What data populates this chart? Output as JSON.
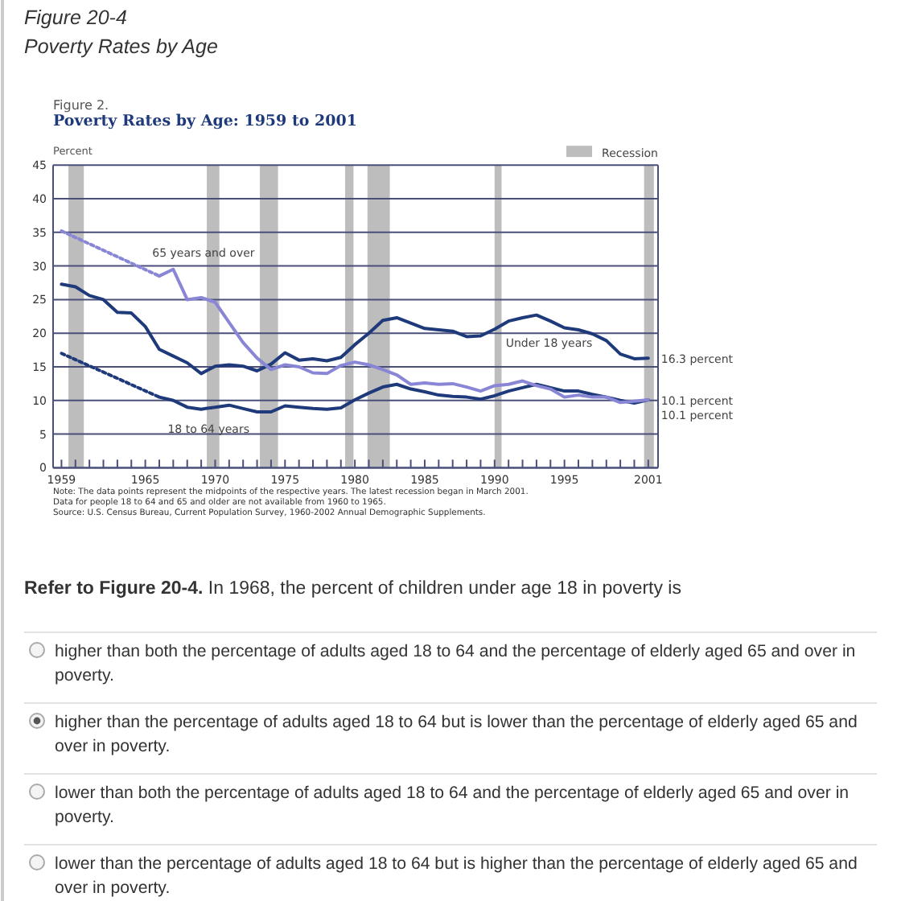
{
  "chart_data": {
    "type": "line",
    "title": "Poverty Rates by Age: 1959 to 2001",
    "subtitle": "Figure 2.",
    "ylabel": "Percent",
    "x": [
      1959,
      1960,
      1961,
      1962,
      1963,
      1964,
      1965,
      1966,
      1967,
      1968,
      1969,
      1970,
      1971,
      1972,
      1973,
      1974,
      1975,
      1976,
      1977,
      1978,
      1979,
      1980,
      1981,
      1982,
      1983,
      1984,
      1985,
      1986,
      1987,
      1988,
      1989,
      1990,
      1991,
      1992,
      1993,
      1994,
      1995,
      1996,
      1997,
      1998,
      1999,
      2000,
      2001
    ],
    "series": [
      {
        "name": "Under 18 years",
        "color": "#1f3a7a",
        "values": [
          27.3,
          26.9,
          25.6,
          25.0,
          23.1,
          23.0,
          21.0,
          17.6,
          16.6,
          15.6,
          14.0,
          15.1,
          15.3,
          15.1,
          14.4,
          15.4,
          17.1,
          16.0,
          16.2,
          15.9,
          16.4,
          18.3,
          20.0,
          21.9,
          22.3,
          21.5,
          20.7,
          20.5,
          20.3,
          19.5,
          19.6,
          20.6,
          21.8,
          22.3,
          22.7,
          21.8,
          20.8,
          20.5,
          19.9,
          18.9,
          16.9,
          16.2,
          16.3
        ],
        "value_labels": [
          null,
          null,
          null,
          null,
          null,
          null,
          null,
          null,
          null,
          null,
          null,
          null,
          null,
          null,
          null,
          null,
          null,
          null,
          null,
          null,
          null,
          null,
          null,
          null,
          null,
          null,
          null,
          null,
          null,
          null,
          null,
          null,
          null,
          null,
          null,
          null,
          null,
          null,
          null,
          null,
          null,
          null,
          "16.3 percent"
        ]
      },
      {
        "name": "18 to 64 years",
        "color": "#1f3a7a",
        "x": [
          1966,
          1967,
          1968,
          1969,
          1970,
          1971,
          1972,
          1973,
          1974,
          1975,
          1976,
          1977,
          1978,
          1979,
          1980,
          1981,
          1982,
          1983,
          1984,
          1985,
          1986,
          1987,
          1988,
          1989,
          1990,
          1991,
          1992,
          1993,
          1994,
          1995,
          1996,
          1997,
          1998,
          1999,
          2000,
          2001
        ],
        "values": [
          10.5,
          10.0,
          9.0,
          8.7,
          9.0,
          9.3,
          8.8,
          8.3,
          8.3,
          9.2,
          9.0,
          8.8,
          8.7,
          8.9,
          10.1,
          11.1,
          12.0,
          12.4,
          11.7,
          11.3,
          10.8,
          10.6,
          10.5,
          10.2,
          10.7,
          11.4,
          11.9,
          12.4,
          11.9,
          11.4,
          11.4,
          10.9,
          10.5,
          10.0,
          9.6,
          10.1
        ],
        "value_labels": [
          null,
          null,
          null,
          null,
          null,
          null,
          null,
          null,
          null,
          null,
          null,
          null,
          null,
          null,
          null,
          null,
          null,
          null,
          null,
          null,
          null,
          null,
          null,
          null,
          null,
          null,
          null,
          null,
          null,
          null,
          null,
          null,
          null,
          null,
          null,
          "10.1 percent"
        ]
      },
      {
        "color": "#1f3a7a",
        "line_style": "dotted",
        "x": [
          1959,
          1966
        ],
        "values": [
          17.0,
          10.5
        ]
      },
      {
        "name": "65 years and over",
        "color": "#8a86d6",
        "x": [
          1966,
          1967,
          1968,
          1969,
          1970,
          1971,
          1972,
          1973,
          1974,
          1975,
          1976,
          1977,
          1978,
          1979,
          1980,
          1981,
          1982,
          1983,
          1984,
          1985,
          1986,
          1987,
          1988,
          1989,
          1990,
          1991,
          1992,
          1993,
          1994,
          1995,
          1996,
          1997,
          1998,
          1999,
          2000,
          2001
        ],
        "values": [
          28.5,
          29.5,
          25.0,
          25.3,
          24.6,
          21.6,
          18.6,
          16.3,
          14.6,
          15.3,
          15.0,
          14.1,
          14.0,
          15.2,
          15.7,
          15.3,
          14.6,
          13.8,
          12.4,
          12.6,
          12.4,
          12.5,
          12.0,
          11.4,
          12.2,
          12.4,
          12.9,
          12.2,
          11.7,
          10.5,
          10.8,
          10.5,
          10.5,
          9.7,
          9.9,
          10.1
        ],
        "value_labels": [
          null,
          null,
          null,
          null,
          null,
          null,
          null,
          null,
          null,
          null,
          null,
          null,
          null,
          null,
          null,
          null,
          null,
          null,
          null,
          null,
          null,
          null,
          null,
          null,
          null,
          null,
          null,
          null,
          null,
          null,
          null,
          null,
          null,
          null,
          null,
          "10.1 percent"
        ]
      },
      {
        "color": "#8a86d6",
        "line_style": "dotted",
        "x": [
          1959,
          1966
        ],
        "values": [
          35.2,
          28.5
        ]
      }
    ],
    "xlim": [
      1958.4,
      2001.7
    ],
    "xticks": [
      1959,
      {
        "value": 1960,
        "label": null
      },
      {
        "value": 1961,
        "label": null
      },
      {
        "value": 1962,
        "label": null
      },
      {
        "value": 1963,
        "label": null
      },
      {
        "value": 1964,
        "label": null
      },
      1965,
      {
        "value": 1966,
        "label": null
      },
      {
        "value": 1967,
        "label": null
      },
      {
        "value": 1968,
        "label": null
      },
      {
        "value": 1969,
        "label": null
      },
      1970,
      {
        "value": 1971,
        "label": null
      },
      {
        "value": 1972,
        "label": null
      },
      {
        "value": 1973,
        "label": null
      },
      {
        "value": 1974,
        "label": null
      },
      1975,
      {
        "value": 1976,
        "label": null
      },
      {
        "value": 1977,
        "label": null
      },
      {
        "value": 1978,
        "label": null
      },
      {
        "value": 1979,
        "label": null
      },
      1980,
      {
        "value": 1981,
        "label": null
      },
      {
        "value": 1982,
        "label": null
      },
      {
        "value": 1983,
        "label": null
      },
      {
        "value": 1984,
        "label": null
      },
      1985,
      {
        "value": 1986,
        "label": null
      },
      {
        "value": 1987,
        "label": null
      },
      {
        "value": 1988,
        "label": null
      },
      {
        "value": 1989,
        "label": null
      },
      1990,
      {
        "value": 1991,
        "label": null
      },
      {
        "value": 1992,
        "label": null
      },
      {
        "value": 1993,
        "label": null
      },
      {
        "value": 1994,
        "label": null
      },
      1995,
      {
        "value": 1996,
        "label": null
      },
      {
        "value": 1997,
        "label": null
      },
      {
        "value": 1998,
        "label": null
      },
      {
        "value": 1999,
        "label": null
      },
      {
        "value": 2000,
        "label": null
      },
      2001
    ],
    "ylim": [
      0,
      45
    ],
    "yticks": [
      0,
      5,
      10,
      15,
      20,
      25,
      30,
      35,
      40,
      45
    ],
    "grid": "y",
    "legend": "top right",
    "line_style": "solid",
    "marker": "none",
    "bands": [
      {
        "axis": "x",
        "from": 1959.5,
        "to": 1960.6,
        "label": "Recession",
        "color": "#bdbdbd"
      },
      {
        "axis": "x",
        "from": 1969.4,
        "to": 1970.3,
        "color": "#bdbdbd"
      },
      {
        "axis": "x",
        "from": 1973.2,
        "to": 1974.5,
        "color": "#bdbdbd"
      },
      {
        "axis": "x",
        "from": 1979.3,
        "to": 1979.9,
        "color": "#bdbdbd"
      },
      {
        "axis": "x",
        "from": 1980.9,
        "to": 1982.5,
        "color": "#bdbdbd"
      },
      {
        "axis": "x",
        "from": 1990.0,
        "to": 1990.5,
        "color": "#bdbdbd"
      },
      {
        "axis": "x",
        "from": 2000.7,
        "to": 2001.4,
        "color": "#bdbdbd"
      }
    ],
    "annotations": [
      "Figure 20-4",
      "Poverty Rates by Age",
      "Note: The data points represent the midpoints of the respective years. The latest recession began in March 2001.",
      "Data for people 18 to 64 and 65 and older are not available from 1960 to 1965.",
      "Source: U.S. Census Bureau, Current Population Survey, 1960-2002 Annual Demographic Supplements.",
      "Refer to Figure 20-4.",
      "In 1968, the percent of children under age 18 in poverty is",
      "higher than both the percentage of adults aged 18 to 64 and the percentage of elderly aged 65 and over in poverty.",
      "higher than the percentage of adults aged 18 to 64 but is lower than the percentage of elderly aged 65 and over in poverty.",
      "lower than both the percentage of adults aged 18 to 64 and the percentage of elderly aged 65 and over in poverty.",
      "lower than the percentage of adults aged 18 to 64 but is higher than the percentage of elderly aged 65 and over in poverty."
    ]
  }
}
